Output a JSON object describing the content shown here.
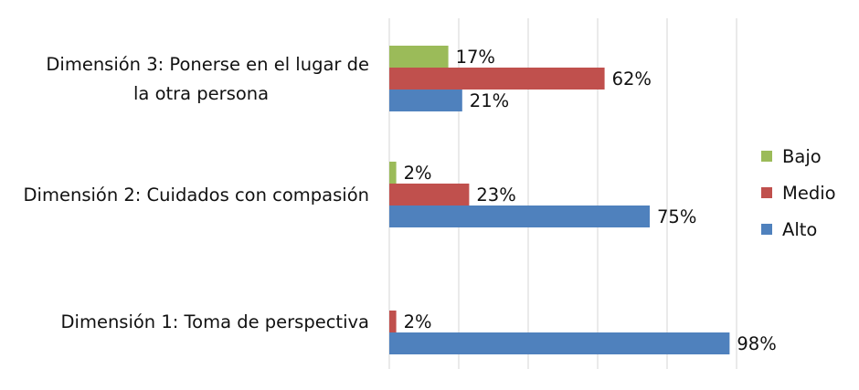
{
  "chart_data": {
    "type": "bar",
    "orientation": "horizontal",
    "categories": [
      "Dimensión 1: Toma de perspectiva",
      "Dimensión 2: Cuidados con compasión",
      "Dimensión 3: Ponerse en el lugar de la otra persona"
    ],
    "category_label_lines": [
      [
        "Dimensión 1: Toma de perspectiva"
      ],
      [
        "Dimensión 2: Cuidados con compasión"
      ],
      [
        "Dimensión 3: Ponerse en el lugar de",
        "la otra persona"
      ]
    ],
    "series": [
      {
        "name": "Alto",
        "color": "#4F81BD",
        "values": [
          98,
          75,
          21
        ],
        "labels": [
          "98%",
          "75%",
          "21%"
        ]
      },
      {
        "name": "Medio",
        "color": "#C0504D",
        "values": [
          2,
          23,
          62
        ],
        "labels": [
          "2%",
          "23%",
          "62%"
        ]
      },
      {
        "name": "Bajo",
        "color": "#9BBB59",
        "values": [
          0,
          2,
          17
        ],
        "labels": [
          "",
          "2%",
          "17%"
        ]
      }
    ],
    "legend": [
      "Bajo",
      "Medio",
      "Alto"
    ],
    "legend_position": "right",
    "xlim": [
      0,
      100
    ],
    "grid": true,
    "title": "",
    "xlabel": "",
    "ylabel": ""
  }
}
